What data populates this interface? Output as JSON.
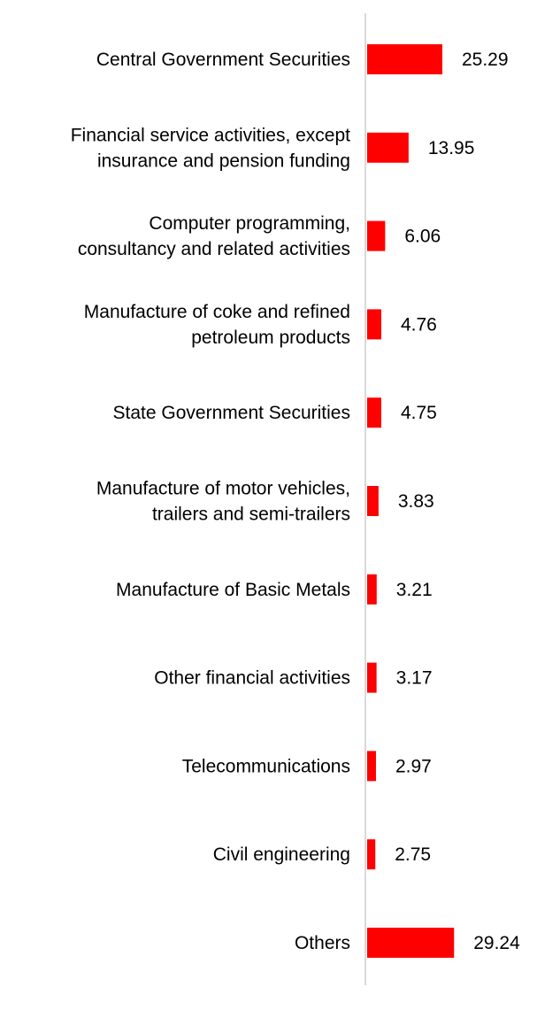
{
  "chart_data": {
    "type": "bar",
    "orientation": "horizontal",
    "title": "",
    "xlabel": "",
    "ylabel": "",
    "categories": [
      [
        "Central Government Securities"
      ],
      [
        "Financial service activities, except",
        "insurance and pension funding"
      ],
      [
        "Computer programming,",
        "consultancy and related activities"
      ],
      [
        "Manufacture of coke and refined",
        "petroleum products"
      ],
      [
        "State Government Securities"
      ],
      [
        "Manufacture of motor vehicles,",
        "trailers and semi-trailers"
      ],
      [
        "Manufacture of Basic Metals"
      ],
      [
        "Other financial activities"
      ],
      [
        "Telecommunications"
      ],
      [
        "Civil engineering"
      ],
      [
        "Others"
      ]
    ],
    "values": [
      25.29,
      13.95,
      6.06,
      4.76,
      4.75,
      3.83,
      3.21,
      3.17,
      2.97,
      2.75,
      29.24
    ],
    "value_labels": [
      "25.29",
      "13.95",
      "6.06",
      "4.76",
      "4.75",
      "3.83",
      "3.21",
      "3.17",
      "2.97",
      "2.75",
      "29.24"
    ],
    "xlim": [
      0,
      30
    ],
    "grid": false,
    "legend": "none",
    "colors": {
      "bar": "#ff0000",
      "axis": "#d9d9d9",
      "text": "#000000"
    }
  }
}
